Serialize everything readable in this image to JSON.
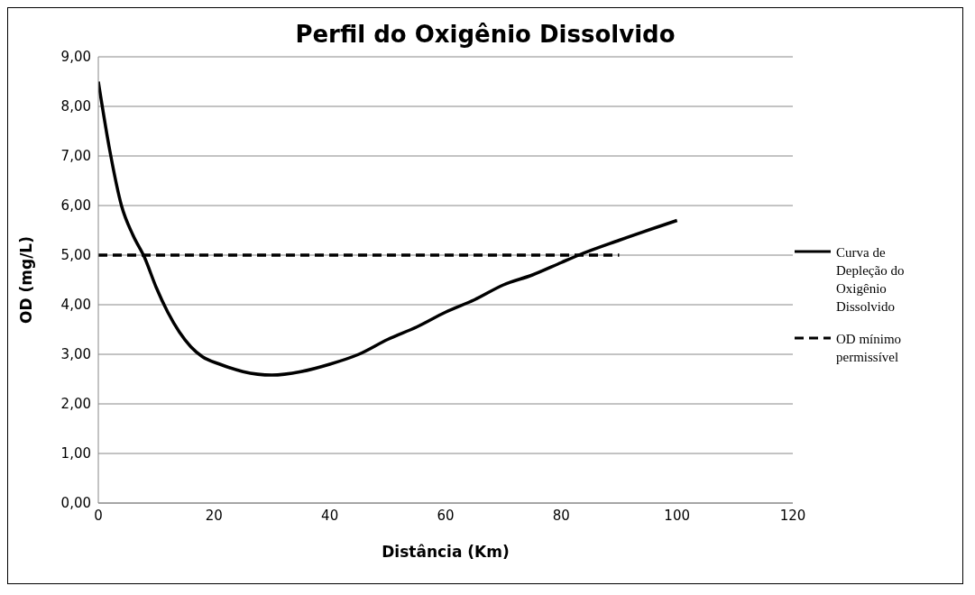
{
  "chart_data": {
    "type": "line",
    "title": "Perfil do Oxigênio Dissolvido",
    "xlabel": "Distância (Km)",
    "ylabel": "OD (mg/L)",
    "xlim": [
      0,
      120
    ],
    "xticks": [
      0,
      20,
      40,
      60,
      80,
      100,
      120
    ],
    "ylim": [
      0,
      9
    ],
    "yticks": [
      {
        "value": 0,
        "label": "0,00"
      },
      {
        "value": 1,
        "label": "1,00"
      },
      {
        "value": 2,
        "label": "2,00"
      },
      {
        "value": 3,
        "label": "3,00"
      },
      {
        "value": 4,
        "label": "4,00"
      },
      {
        "value": 5,
        "label": "5,00"
      },
      {
        "value": 6,
        "label": "6,00"
      },
      {
        "value": 7,
        "label": "7,00"
      },
      {
        "value": 8,
        "label": "8,00"
      },
      {
        "value": 9,
        "label": "9,00"
      }
    ],
    "grid": "y",
    "legend": "right",
    "marker": "none",
    "series": [
      {
        "name": "Curva de Depleção do Oxigênio Dissolvido",
        "color": "#000000",
        "line_style": "solid",
        "x": [
          0,
          2,
          4,
          6,
          8,
          10,
          12,
          14,
          16,
          18,
          21,
          25,
          30,
          35,
          40,
          45,
          50,
          55,
          60,
          65,
          70,
          75,
          80,
          83,
          90,
          100
        ],
        "values": [
          8.5,
          7.1,
          6.0,
          5.4,
          4.95,
          4.35,
          3.85,
          3.45,
          3.15,
          2.95,
          2.8,
          2.65,
          2.58,
          2.65,
          2.8,
          3.0,
          3.3,
          3.55,
          3.85,
          4.1,
          4.4,
          4.6,
          4.85,
          5.0,
          5.3,
          5.7
        ]
      },
      {
        "name": "OD mínimo permissível",
        "color": "#000000",
        "line_style": "dashed",
        "x": [
          0,
          90
        ],
        "values": [
          5,
          5
        ]
      }
    ]
  }
}
